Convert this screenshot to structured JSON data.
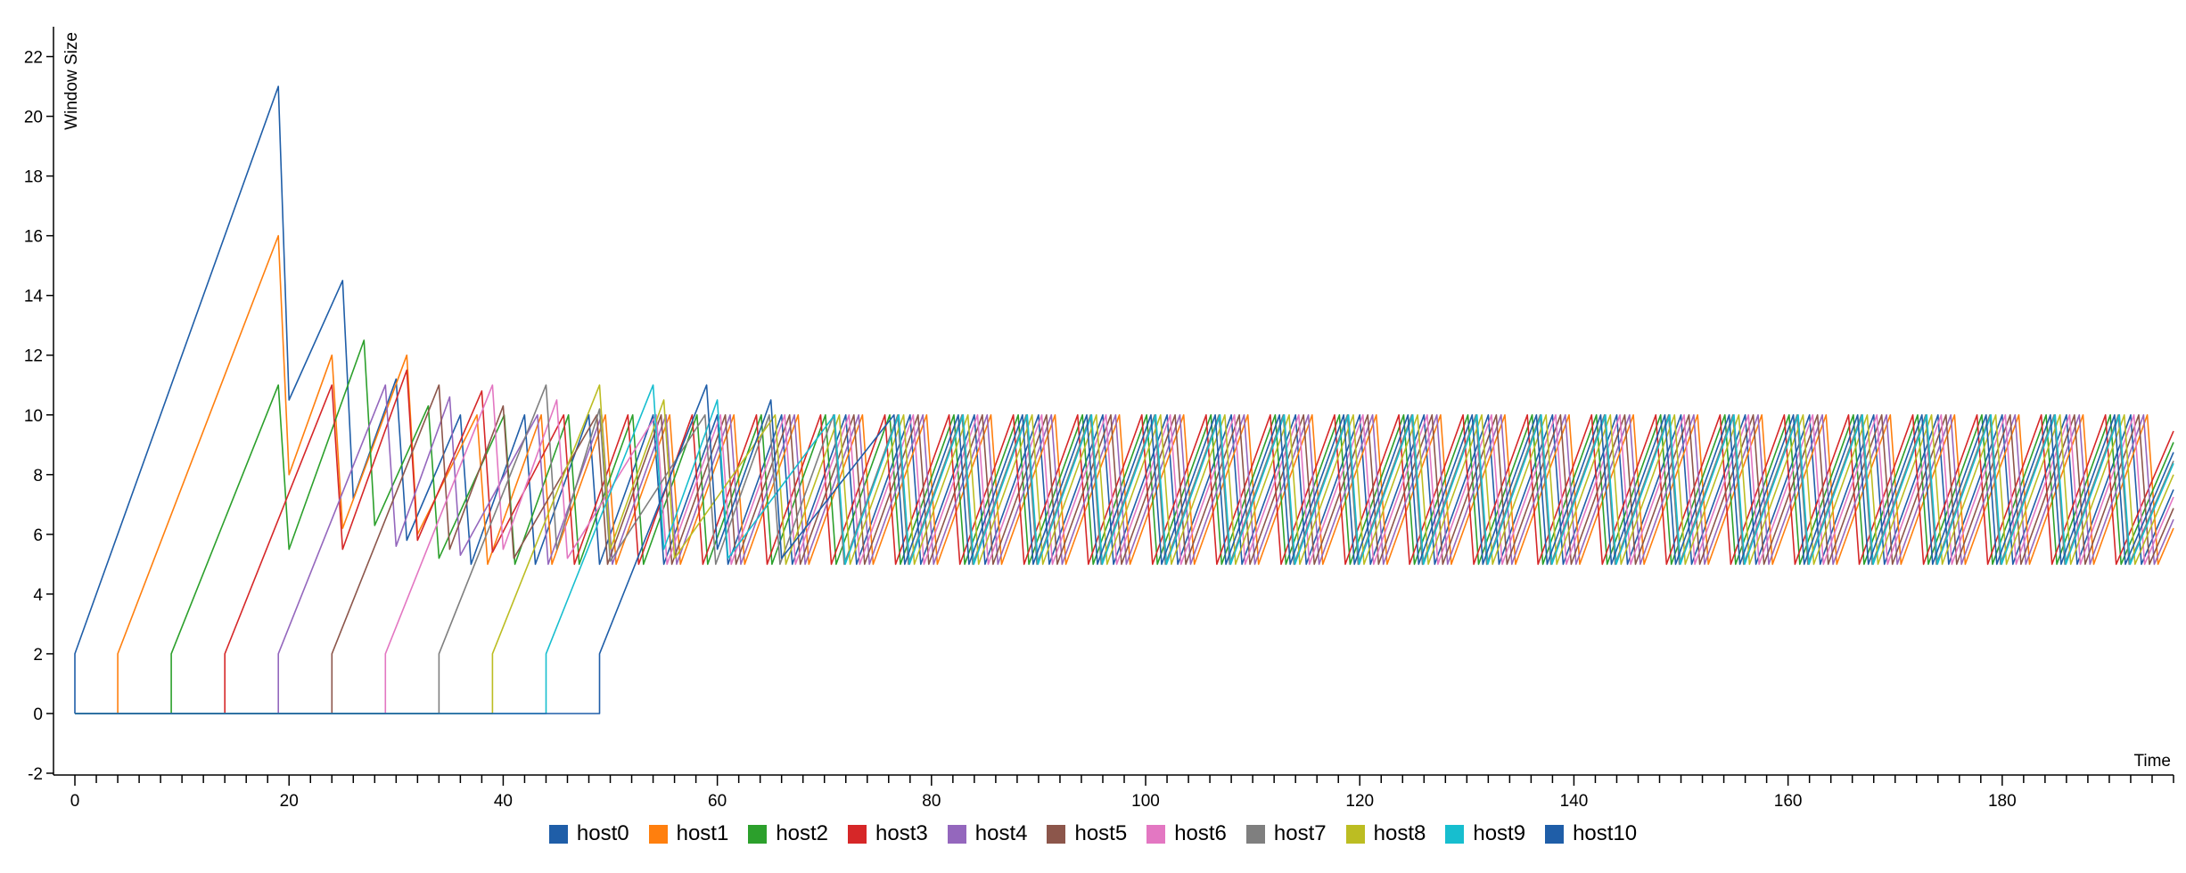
{
  "chart_data": {
    "type": "line",
    "xlabel": "Time",
    "ylabel": "Window Size",
    "xlim": [
      -2,
      196
    ],
    "ylim": [
      -2,
      23
    ],
    "x_ticks": [
      0,
      20,
      40,
      60,
      80,
      100,
      120,
      140,
      160,
      180
    ],
    "y_ticks": [
      -2,
      0,
      2,
      4,
      6,
      8,
      10,
      12,
      14,
      16,
      18,
      20,
      22
    ],
    "grid": false,
    "legend_position": "bottom",
    "series": [
      {
        "name": "host0",
        "color": "#1f5ea8",
        "start": 0,
        "peak": 21,
        "peak_x": 19,
        "transient": [
          [
            19,
            21
          ],
          [
            20,
            10.5
          ],
          [
            25,
            14.5
          ],
          [
            26,
            7.2
          ],
          [
            30,
            11.2
          ],
          [
            31,
            5.8
          ]
        ]
      },
      {
        "name": "host1",
        "color": "#ff7f0e",
        "start": 4,
        "peak": 16,
        "peak_x": 19,
        "transient": [
          [
            19,
            16
          ],
          [
            20,
            8
          ],
          [
            24,
            12
          ],
          [
            25,
            6.2
          ],
          [
            31,
            12
          ],
          [
            32,
            6
          ]
        ]
      },
      {
        "name": "host2",
        "color": "#2ca02c",
        "start": 9,
        "peak": 11,
        "peak_x": 19,
        "transient": [
          [
            19,
            11
          ],
          [
            20,
            5.5
          ],
          [
            27,
            12.5
          ],
          [
            28,
            6.3
          ],
          [
            33,
            10.3
          ],
          [
            34,
            5.2
          ]
        ]
      },
      {
        "name": "host3",
        "color": "#d62728",
        "start": 14,
        "peak": 11,
        "peak_x": 24,
        "transient": [
          [
            24,
            11
          ],
          [
            25,
            5.5
          ],
          [
            31,
            11.5
          ],
          [
            32,
            5.8
          ],
          [
            38,
            10.8
          ],
          [
            39,
            5.4
          ]
        ]
      },
      {
        "name": "host4",
        "color": "#9467bd",
        "start": 19,
        "peak": 11,
        "peak_x": 29,
        "transient": [
          [
            29,
            11
          ],
          [
            30,
            5.6
          ],
          [
            35,
            10.6
          ],
          [
            36,
            5.3
          ]
        ]
      },
      {
        "name": "host5",
        "color": "#8c564b",
        "start": 24,
        "peak": 11,
        "peak_x": 34,
        "transient": [
          [
            34,
            11
          ],
          [
            35,
            5.5
          ],
          [
            40,
            10.3
          ],
          [
            41,
            5.2
          ]
        ]
      },
      {
        "name": "host6",
        "color": "#e377c2",
        "start": 29,
        "peak": 11,
        "peak_x": 39,
        "transient": [
          [
            39,
            11
          ],
          [
            40,
            5.5
          ],
          [
            45,
            10.5
          ],
          [
            46,
            5.2
          ]
        ]
      },
      {
        "name": "host7",
        "color": "#7f7f7f",
        "start": 34,
        "peak": 11,
        "peak_x": 44,
        "transient": [
          [
            44,
            11
          ],
          [
            45,
            5.5
          ],
          [
            49,
            10.2
          ],
          [
            50,
            5.1
          ]
        ]
      },
      {
        "name": "host8",
        "color": "#bcbd22",
        "start": 39,
        "peak": 11,
        "peak_x": 49,
        "transient": [
          [
            49,
            11
          ],
          [
            50,
            5.5
          ],
          [
            55,
            10.5
          ],
          [
            56,
            5.2
          ]
        ]
      },
      {
        "name": "host9",
        "color": "#17becf",
        "start": 44,
        "peak": 11,
        "peak_x": 54,
        "transient": [
          [
            54,
            11
          ],
          [
            55,
            5.5
          ],
          [
            60,
            10.5
          ],
          [
            61,
            5.2
          ]
        ]
      },
      {
        "name": "host10",
        "color": "#1f5ea8",
        "start": 49,
        "peak": 11,
        "peak_x": 59,
        "transient": [
          [
            59,
            11
          ],
          [
            60,
            5.5
          ],
          [
            65,
            10.5
          ],
          [
            66,
            5.2
          ]
        ]
      }
    ],
    "steady_state": {
      "min": 5,
      "max": 10,
      "period": 6,
      "end_x": 196
    }
  }
}
